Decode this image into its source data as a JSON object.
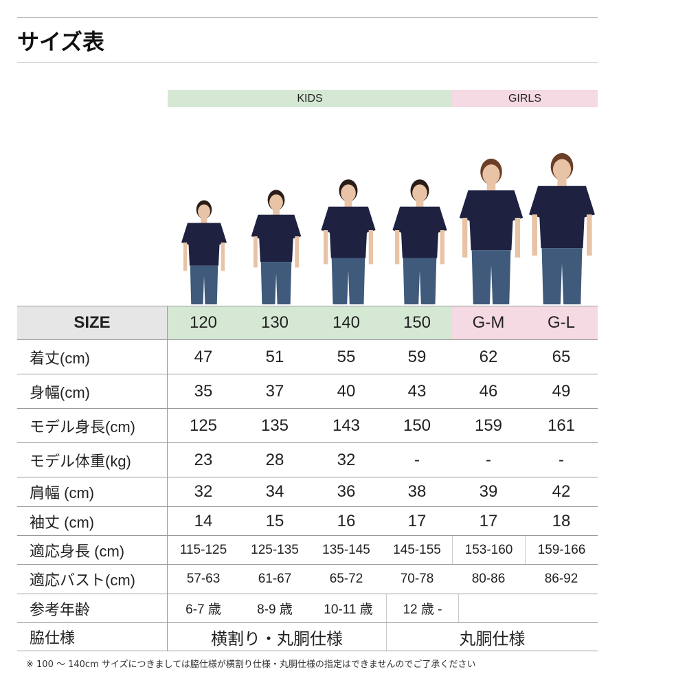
{
  "title": "サイズ表",
  "groups": {
    "kids": "KIDS",
    "girls": "GIRLS"
  },
  "colors": {
    "kids": "#d5e8d4",
    "girls": "#f5d9e3",
    "size_label_bg": "#e6e6e6",
    "shirt": "#1e2140",
    "jeans": "#3f5a7a"
  },
  "table": {
    "size_label": "SIZE",
    "sizes": [
      "120",
      "130",
      "140",
      "150",
      "G-M",
      "G-L"
    ],
    "rows": [
      {
        "label": "着丈(cm)",
        "values": [
          "47",
          "51",
          "55",
          "59",
          "62",
          "65"
        ]
      },
      {
        "label": "身幅(cm)",
        "values": [
          "35",
          "37",
          "40",
          "43",
          "46",
          "49"
        ]
      },
      {
        "label": "モデル身長(cm)",
        "values": [
          "125",
          "135",
          "143",
          "150",
          "159",
          "161"
        ]
      },
      {
        "label": "モデル体重(kg)",
        "values": [
          "23",
          "28",
          "32",
          "-",
          "-",
          "-"
        ]
      },
      {
        "label": "肩幅 (cm)",
        "values": [
          "32",
          "34",
          "36",
          "38",
          "39",
          "42"
        ]
      },
      {
        "label": "袖丈 (cm)",
        "values": [
          "14",
          "15",
          "16",
          "17",
          "17",
          "18"
        ]
      },
      {
        "label": "適応身長 (cm)",
        "values": [
          "115-125",
          "125-135",
          "135-145",
          "145-155",
          "153-160",
          "159-166"
        ]
      },
      {
        "label": "適応バスト(cm)",
        "values": [
          "57-63",
          "61-67",
          "65-72",
          "70-78",
          "80-86",
          "86-92"
        ]
      },
      {
        "label": "参考年齢",
        "values": [
          "6-7 歳",
          "8-9 歳",
          "10-11 歳",
          "12 歳 -"
        ]
      },
      {
        "label": "脇仕様",
        "values": [
          "横割り・丸胴仕様",
          "丸胴仕様"
        ]
      }
    ]
  },
  "note": "※ 100 〜 140cm サイズにつきましては脇仕様が横割り仕様・丸胴仕様の指定はできませんのでご了承ください"
}
